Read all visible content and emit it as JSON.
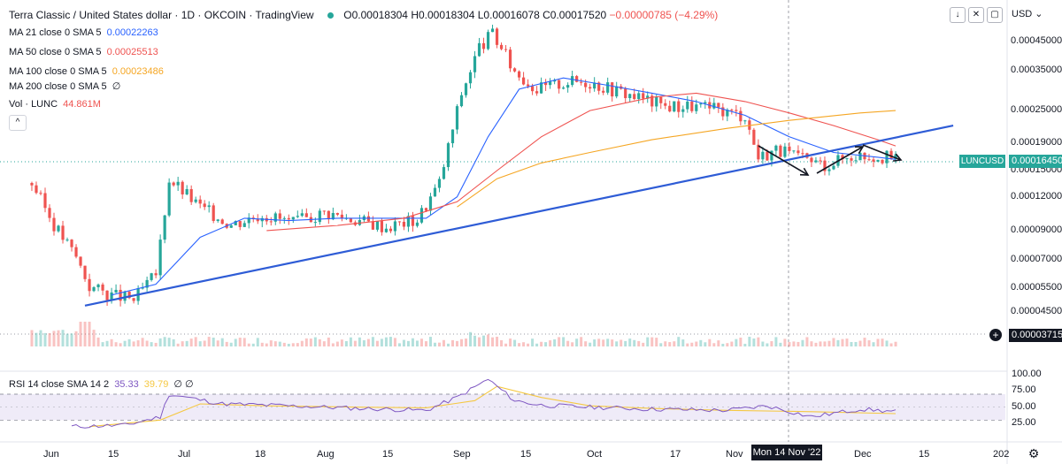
{
  "header": {
    "title": "Terra Classic / United States dollar · 1D · OKCOIN · TradingView",
    "ohlc": "O0.00018304 H0.00018304 L0.00016078 C0.00017520",
    "change": "−0.00000785 (−4.29%)",
    "currency": "USD"
  },
  "indicators": [
    {
      "label": "MA 21 close 0 SMA 5",
      "value": "0.00022263",
      "color": "#2962ff"
    },
    {
      "label": "MA 50 close 0 SMA 5",
      "value": "0.00025513",
      "color": "#ef5350"
    },
    {
      "label": "MA 100 close 0 SMA 5",
      "value": "0.00023486",
      "color": "#f5a623"
    },
    {
      "label": "MA 200 close 0 SMA 5",
      "value": "∅",
      "color": "#131722"
    },
    {
      "label": "Vol · LUNC",
      "value": "44.861M",
      "color": "#ef5350"
    }
  ],
  "toolbar": {
    "down_icon": "↓",
    "fullscreen_icon": "✕",
    "maximize_icon": "▢",
    "collapse_icon": "^"
  },
  "price_axis": {
    "labels": [
      "0.00045000",
      "0.00035000",
      "0.00025000",
      "0.00019000",
      "0.00015000",
      "0.00012000",
      "0.00009000",
      "0.00007000",
      "0.00005500",
      "0.00004500"
    ],
    "last_price": "0.00016450",
    "symbol": "LUNCUSD",
    "volume_tag": "0.00003715"
  },
  "rsi": {
    "legend_label": "RSI 14 close SMA 14 2",
    "rsi_value": "35.33",
    "sma_value": "39.79",
    "extra": "∅ ∅",
    "levels": [
      "100.00",
      "75.00",
      "50.00",
      "25.00"
    ]
  },
  "time_axis": {
    "labels": [
      "Jun",
      "15",
      "Jul",
      "18",
      "Aug",
      "15",
      "Sep",
      "15",
      "Oct",
      "17",
      "Nov",
      "Dec",
      "15",
      "202"
    ],
    "cursor_label": "Mon 14 Nov '22"
  },
  "chart_data": {
    "type": "line",
    "title": "Terra Classic / United States dollar · 1D · OKCOIN",
    "y_scale": "log",
    "price_close_approx": {
      "x": [
        "2022-05-28",
        "2022-06-02",
        "2022-06-07",
        "2022-06-10",
        "2022-06-15",
        "2022-06-20",
        "2022-06-25",
        "2022-06-28",
        "2022-07-05",
        "2022-07-12",
        "2022-07-19",
        "2022-07-26",
        "2022-08-02",
        "2022-08-09",
        "2022-08-16",
        "2022-08-23",
        "2022-08-28",
        "2022-09-02",
        "2022-09-06",
        "2022-09-09",
        "2022-09-14",
        "2022-09-19",
        "2022-09-26",
        "2022-10-01",
        "2022-10-06",
        "2022-10-12",
        "2022-10-18",
        "2022-10-24",
        "2022-10-31",
        "2022-11-05",
        "2022-11-08",
        "2022-11-12",
        "2022-11-18",
        "2022-11-23",
        "2022-11-30",
        "2022-12-05",
        "2022-12-09"
      ],
      "y": [
        0.000135,
        9.5e-05,
        7.2e-05,
        5.6e-05,
        5.2e-05,
        5e-05,
        6.2e-05,
        0.00014,
        0.00011,
        9.5e-05,
        0.000104,
        9.6e-05,
        0.000105,
        9.9e-05,
        9.3e-05,
        9.9e-05,
        0.000135,
        0.00029,
        0.00043,
        0.00048,
        0.00035,
        0.0003,
        0.00032,
        0.00032,
        0.0003,
        0.00028,
        0.00026,
        0.00026,
        0.00025,
        0.00024,
        0.000168,
        0.00018,
        0.000165,
        0.000158,
        0.000172,
        0.00017,
        0.000165
      ]
    },
    "series": [
      {
        "name": "MA 21 close 0 SMA 5",
        "color": "#2962ff",
        "x": [
          "2022-06-15",
          "2022-06-25",
          "2022-07-05",
          "2022-07-15",
          "2022-07-25",
          "2022-08-05",
          "2022-08-15",
          "2022-08-25",
          "2022-09-01",
          "2022-09-08",
          "2022-09-15",
          "2022-09-25",
          "2022-10-05",
          "2022-10-15",
          "2022-10-25",
          "2022-11-05",
          "2022-11-15",
          "2022-11-25",
          "2022-12-05",
          "2022-12-09"
        ],
        "y": [
          5.2e-05,
          5.7e-05,
          8.5e-05,
          0.0001,
          9.8e-05,
          0.0001,
          0.0001,
          0.0001,
          0.00012,
          0.0002,
          0.0003,
          0.00033,
          0.00031,
          0.00029,
          0.00027,
          0.00024,
          0.0002,
          0.000175,
          0.000168,
          0.000165
        ]
      },
      {
        "name": "MA 50 close 0 SMA 5",
        "color": "#ef5350",
        "x": [
          "2022-07-20",
          "2022-08-05",
          "2022-08-20",
          "2022-09-01",
          "2022-09-10",
          "2022-09-20",
          "2022-10-01",
          "2022-10-15",
          "2022-10-25",
          "2022-11-05",
          "2022-11-15",
          "2022-11-25",
          "2022-12-05",
          "2022-12-09"
        ],
        "y": [
          9e-05,
          9.4e-05,
          0.0001,
          0.000115,
          0.00015,
          0.0002,
          0.00025,
          0.00028,
          0.00029,
          0.00027,
          0.000245,
          0.00022,
          0.000195,
          0.000185
        ]
      },
      {
        "name": "MA 100 close 0 SMA 5",
        "color": "#f5a623",
        "x": [
          "2022-09-01",
          "2022-09-10",
          "2022-09-20",
          "2022-10-01",
          "2022-10-15",
          "2022-11-01",
          "2022-11-15",
          "2022-12-01",
          "2022-12-09"
        ],
        "y": [
          0.00011,
          0.00014,
          0.00016,
          0.000175,
          0.000195,
          0.000215,
          0.00023,
          0.000245,
          0.00025
        ]
      }
    ],
    "trendline": {
      "x": [
        "2022-06-09",
        "2022-12-22"
      ],
      "y": [
        4.75e-05,
        0.00022
      ]
    },
    "volume": {
      "label": "Vol · LUNC",
      "last": "44.861M"
    },
    "rsi": {
      "x": [
        "2022-06-06",
        "2022-06-18",
        "2022-06-26",
        "2022-06-28",
        "2022-07-10",
        "2022-07-25",
        "2022-08-10",
        "2022-08-25",
        "2022-09-01",
        "2022-09-08",
        "2022-09-14",
        "2022-09-20",
        "2022-10-01",
        "2022-10-15",
        "2022-11-01",
        "2022-11-10",
        "2022-11-20",
        "2022-12-01",
        "2022-12-09"
      ],
      "y": [
        20,
        22,
        35,
        70,
        55,
        52,
        48,
        45,
        65,
        93,
        60,
        53,
        50,
        47,
        45,
        52,
        35,
        47,
        43
      ]
    },
    "rsi_sma": {
      "x": [
        "2022-06-10",
        "2022-06-26",
        "2022-07-05",
        "2022-07-20",
        "2022-08-10",
        "2022-08-25",
        "2022-09-05",
        "2022-09-10",
        "2022-09-20",
        "2022-10-01",
        "2022-10-15",
        "2022-11-01",
        "2022-11-20",
        "2022-12-09"
      ],
      "y": [
        20,
        30,
        55,
        52,
        50,
        49,
        60,
        82,
        65,
        52,
        48,
        45,
        43,
        40
      ]
    },
    "ylim_rsi": [
      0,
      100
    ]
  }
}
